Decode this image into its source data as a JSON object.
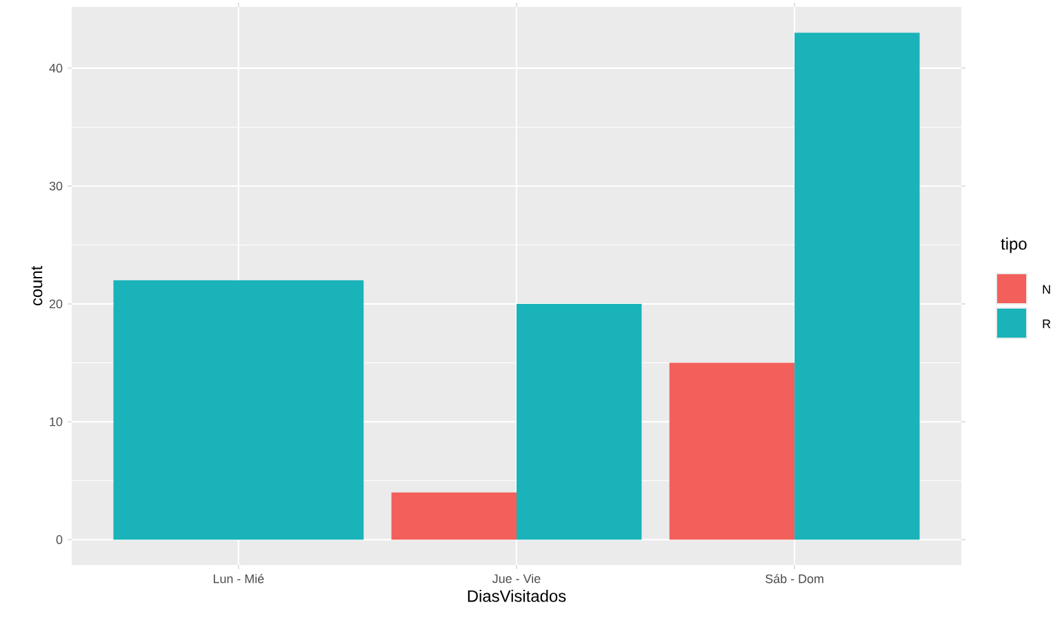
{
  "chart_data": {
    "type": "bar",
    "xlabel": "DiasVisitados",
    "ylabel": "count",
    "legend_title": "tipo",
    "categories": [
      "Lun - Mié",
      "Jue - Vie",
      "Sáb - Dom"
    ],
    "series": [
      {
        "name": "N",
        "color": "#f35f5a",
        "values": [
          null,
          4,
          15
        ]
      },
      {
        "name": "R",
        "color": "#19b3b9",
        "values": [
          22,
          20,
          43
        ]
      }
    ],
    "ylim": [
      -2.15,
      45.2
    ],
    "yticks": [
      0,
      10,
      20,
      30,
      40
    ],
    "grid": true,
    "legend": "right"
  }
}
